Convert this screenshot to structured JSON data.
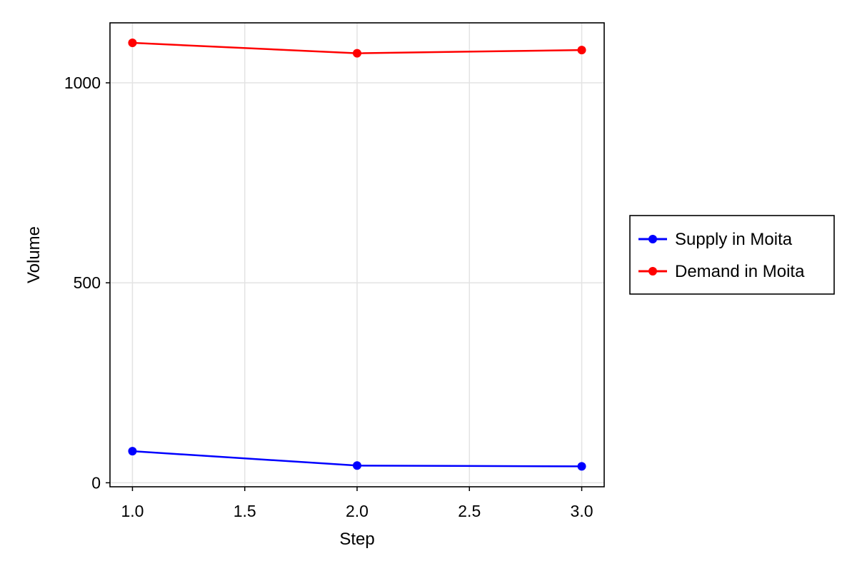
{
  "chart_data": {
    "type": "line",
    "xlabel": "Step",
    "ylabel": "Volume",
    "xlim": [
      0.9,
      3.1
    ],
    "ylim": [
      -10,
      1150
    ],
    "x_ticks": [
      1.0,
      1.5,
      2.0,
      2.5,
      3.0
    ],
    "x_tick_labels": [
      "1.0",
      "1.5",
      "2.0",
      "2.5",
      "3.0"
    ],
    "y_ticks": [
      0,
      500,
      1000
    ],
    "y_tick_labels": [
      "0",
      "500",
      "1000"
    ],
    "grid": true,
    "legend_position": "right",
    "series": [
      {
        "name": "Supply in Moita",
        "color": "#0000ff",
        "marker": "circle",
        "x": [
          1.0,
          2.0,
          3.0
        ],
        "y": [
          79,
          43,
          41
        ]
      },
      {
        "name": "Demand in Moita",
        "color": "#ff0000",
        "marker": "circle",
        "x": [
          1.0,
          2.0,
          3.0
        ],
        "y": [
          1100,
          1074,
          1082
        ]
      }
    ]
  }
}
